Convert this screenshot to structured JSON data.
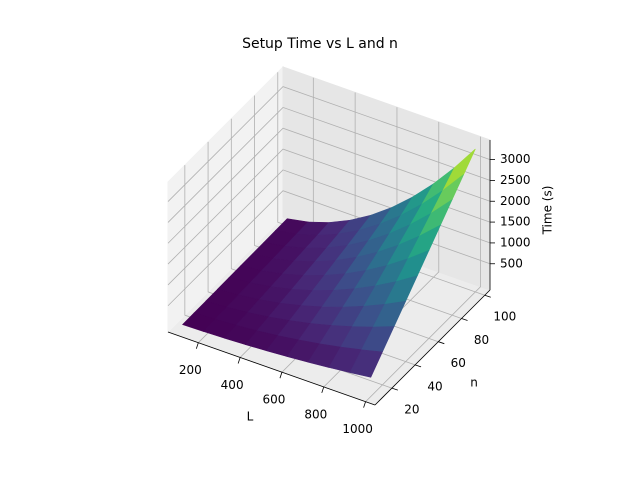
{
  "chart_data": {
    "type": "surface",
    "title": "Setup Time vs L and n",
    "xlabel": "L",
    "ylabel": "n",
    "zlabel": "Time (s)",
    "x": [
      100,
      200,
      300,
      400,
      500,
      600,
      700,
      800,
      900,
      1000
    ],
    "y": [
      10,
      20,
      30,
      40,
      50,
      60,
      70,
      80,
      90,
      100
    ],
    "z": [
      [
        3,
        13,
        30,
        53,
        83,
        119,
        162,
        211,
        267,
        330
      ],
      [
        7,
        26,
        59,
        106,
        165,
        238,
        323,
        422,
        535,
        660
      ],
      [
        10,
        40,
        89,
        158,
        248,
        356,
        485,
        634,
        802,
        990
      ],
      [
        13,
        53,
        119,
        211,
        330,
        475,
        647,
        845,
        1069,
        1320
      ],
      [
        17,
        66,
        149,
        264,
        413,
        594,
        809,
        1056,
        1337,
        1650
      ],
      [
        20,
        79,
        178,
        317,
        495,
        713,
        970,
        1267,
        1604,
        1980
      ],
      [
        23,
        92,
        208,
        370,
        578,
        832,
        1132,
        1478,
        1871,
        2310
      ],
      [
        26,
        106,
        238,
        422,
        660,
        950,
        1294,
        1690,
        2138,
        2640
      ],
      [
        30,
        119,
        267,
        475,
        743,
        1069,
        1455,
        1901,
        2406,
        2970
      ],
      [
        33,
        132,
        297,
        528,
        825,
        1188,
        1617,
        2112,
        2673,
        3300
      ]
    ],
    "xlim": [
      55,
      1045
    ],
    "ylim": [
      5.5,
      104.5
    ],
    "zlim": [
      -130,
      3470
    ],
    "xticks": [
      200,
      400,
      600,
      800,
      1000
    ],
    "yticks": [
      20,
      40,
      60,
      80,
      100
    ],
    "zticks": [
      500,
      1000,
      1500,
      2000,
      2500,
      3000
    ],
    "colormap": "viridis",
    "grid": true
  }
}
